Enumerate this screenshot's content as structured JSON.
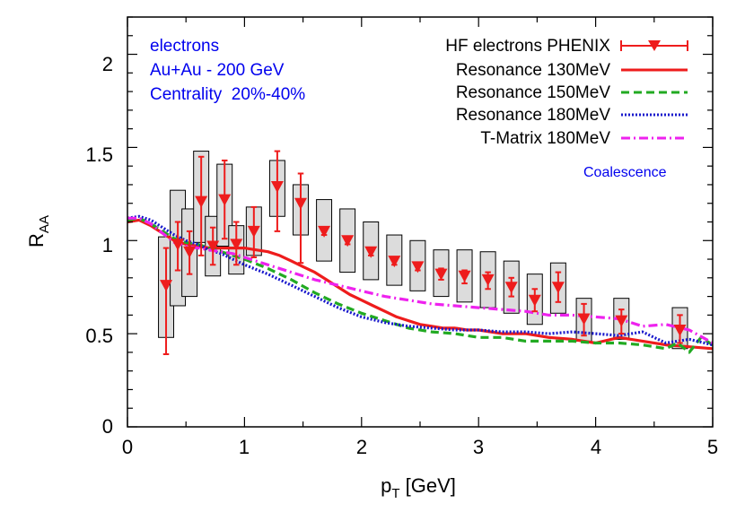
{
  "chart_data": {
    "type": "line",
    "xlabel": "p_T [GeV]",
    "xlabel_main": "p",
    "xlabel_sub": "T",
    "xlabel_rest": " [GeV]",
    "ylabel": "R_AA",
    "ylabel_main": "R",
    "ylabel_sub": "AA",
    "xlim": [
      0,
      5
    ],
    "ylim": [
      0,
      2.2
    ],
    "xticks": [
      0,
      1,
      2,
      3,
      4,
      5
    ],
    "xtick_labels": [
      "0",
      "1",
      "2",
      "3",
      "4",
      "5"
    ],
    "yticks": [
      0,
      0.5,
      1,
      1.5,
      2
    ],
    "ytick_labels": [
      "0",
      "0.5",
      "1",
      "1.5",
      "2"
    ],
    "grid": false,
    "legend_position": "top-right",
    "annotations": [
      "electrons",
      "Au+Au - 200 GeV",
      "Centrality  20%-40%"
    ],
    "extra_label": "Coalescence",
    "colors": {
      "data": "#ee1c1c",
      "res130": "#ee1c1c",
      "res150": "#22aa22",
      "res180": "#1818cc",
      "tmatrix": "#ee22ee",
      "syst_box_fill": "#dcdcdc"
    },
    "series": [
      {
        "name": "HF electrons PHENIX",
        "kind": "points",
        "points": [
          {
            "x": 0.33,
            "y": 0.76,
            "ylo": 0.39,
            "yhi": 0.96,
            "slo": 0.48,
            "shi": 1.02
          },
          {
            "x": 0.43,
            "y": 0.98,
            "ylo": 0.84,
            "yhi": 1.1,
            "slo": 0.65,
            "shi": 1.27
          },
          {
            "x": 0.53,
            "y": 0.94,
            "ylo": 0.82,
            "yhi": 1.05,
            "slo": 0.7,
            "shi": 1.17
          },
          {
            "x": 0.63,
            "y": 1.21,
            "ylo": 0.92,
            "yhi": 1.45,
            "slo": 0.99,
            "shi": 1.48
          },
          {
            "x": 0.73,
            "y": 0.97,
            "ylo": 0.87,
            "yhi": 1.07,
            "slo": 0.81,
            "shi": 1.13
          },
          {
            "x": 0.83,
            "y": 1.22,
            "ylo": 1.01,
            "yhi": 1.43,
            "slo": 0.97,
            "shi": 1.41
          },
          {
            "x": 0.93,
            "y": 0.98,
            "ylo": 0.87,
            "yhi": 1.1,
            "slo": 0.82,
            "shi": 1.08
          },
          {
            "x": 1.08,
            "y": 1.05,
            "ylo": 0.91,
            "yhi": 1.18,
            "slo": 0.92,
            "shi": 1.18
          },
          {
            "x": 1.28,
            "y": 1.29,
            "ylo": 1.05,
            "yhi": 1.48,
            "slo": 1.13,
            "shi": 1.43
          },
          {
            "x": 1.48,
            "y": 1.2,
            "ylo": 0.88,
            "yhi": 1.36,
            "slo": 1.03,
            "shi": 1.3
          },
          {
            "x": 1.68,
            "y": 1.05,
            "ylo": 1.03,
            "yhi": 1.07,
            "slo": 0.89,
            "shi": 1.22
          },
          {
            "x": 1.88,
            "y": 1.0,
            "ylo": 0.98,
            "yhi": 1.02,
            "slo": 0.83,
            "shi": 1.17
          },
          {
            "x": 2.08,
            "y": 0.94,
            "ylo": 0.92,
            "yhi": 0.96,
            "slo": 0.79,
            "shi": 1.1
          },
          {
            "x": 2.28,
            "y": 0.89,
            "ylo": 0.87,
            "yhi": 0.91,
            "slo": 0.76,
            "shi": 1.03
          },
          {
            "x": 2.48,
            "y": 0.86,
            "ylo": 0.84,
            "yhi": 0.88,
            "slo": 0.73,
            "shi": 1.0
          },
          {
            "x": 2.68,
            "y": 0.82,
            "ylo": 0.79,
            "yhi": 0.85,
            "slo": 0.7,
            "shi": 0.95
          },
          {
            "x": 2.88,
            "y": 0.81,
            "ylo": 0.77,
            "yhi": 0.84,
            "slo": 0.67,
            "shi": 0.95
          },
          {
            "x": 3.08,
            "y": 0.79,
            "ylo": 0.74,
            "yhi": 0.83,
            "slo": 0.64,
            "shi": 0.94
          },
          {
            "x": 3.28,
            "y": 0.75,
            "ylo": 0.7,
            "yhi": 0.8,
            "slo": 0.61,
            "shi": 0.89
          },
          {
            "x": 3.48,
            "y": 0.68,
            "ylo": 0.62,
            "yhi": 0.74,
            "slo": 0.55,
            "shi": 0.82
          },
          {
            "x": 3.68,
            "y": 0.75,
            "ylo": 0.67,
            "yhi": 0.83,
            "slo": 0.61,
            "shi": 0.88
          },
          {
            "x": 3.9,
            "y": 0.58,
            "ylo": 0.49,
            "yhi": 0.66,
            "slo": 0.46,
            "shi": 0.69
          },
          {
            "x": 4.22,
            "y": 0.57,
            "ylo": 0.5,
            "yhi": 0.63,
            "slo": 0.47,
            "shi": 0.69
          },
          {
            "x": 4.72,
            "y": 0.52,
            "ylo": 0.45,
            "yhi": 0.6,
            "slo": 0.42,
            "shi": 0.64
          }
        ]
      },
      {
        "name": "Resonance 130MeV",
        "kind": "line",
        "x": [
          0.0,
          0.1,
          0.2,
          0.3,
          0.4,
          0.5,
          0.6,
          0.7,
          0.8,
          0.9,
          1.0,
          1.1,
          1.2,
          1.3,
          1.4,
          1.5,
          1.6,
          1.7,
          1.8,
          1.9,
          2.0,
          2.1,
          2.2,
          2.3,
          2.4,
          2.5,
          2.6,
          2.7,
          2.8,
          2.9,
          3.0,
          3.2,
          3.4,
          3.6,
          3.8,
          4.0,
          4.2,
          4.4,
          4.6,
          4.8,
          5.0
        ],
        "y": [
          1.1,
          1.11,
          1.08,
          1.04,
          1.0,
          0.98,
          0.97,
          0.96,
          0.96,
          0.96,
          0.96,
          0.95,
          0.94,
          0.92,
          0.89,
          0.86,
          0.83,
          0.79,
          0.75,
          0.71,
          0.68,
          0.65,
          0.62,
          0.59,
          0.57,
          0.55,
          0.54,
          0.53,
          0.53,
          0.52,
          0.52,
          0.5,
          0.5,
          0.48,
          0.47,
          0.45,
          0.48,
          0.46,
          0.44,
          0.43,
          0.42
        ]
      },
      {
        "name": "Resonance 150MeV",
        "kind": "line",
        "x": [
          0.0,
          0.1,
          0.2,
          0.3,
          0.4,
          0.5,
          0.6,
          0.7,
          0.8,
          0.9,
          1.0,
          1.2,
          1.4,
          1.6,
          1.8,
          2.0,
          2.2,
          2.4,
          2.6,
          2.8,
          3.0,
          3.2,
          3.4,
          3.6,
          3.8,
          4.0,
          4.2,
          4.4,
          4.6,
          4.7,
          4.8,
          4.9,
          5.0
        ],
        "y": [
          1.11,
          1.12,
          1.09,
          1.05,
          1.01,
          0.99,
          0.98,
          0.96,
          0.94,
          0.92,
          0.9,
          0.85,
          0.79,
          0.72,
          0.66,
          0.61,
          0.57,
          0.53,
          0.51,
          0.5,
          0.48,
          0.48,
          0.46,
          0.46,
          0.46,
          0.45,
          0.45,
          0.44,
          0.42,
          0.45,
          0.4,
          0.48,
          0.44
        ]
      },
      {
        "name": "Resonance 180MeV",
        "kind": "line",
        "x": [
          0.0,
          0.1,
          0.2,
          0.3,
          0.4,
          0.5,
          0.6,
          0.7,
          0.8,
          0.9,
          1.0,
          1.2,
          1.4,
          1.6,
          1.8,
          2.0,
          2.2,
          2.4,
          2.6,
          2.8,
          3.0,
          3.2,
          3.4,
          3.6,
          3.8,
          4.0,
          4.2,
          4.4,
          4.6,
          4.8,
          5.0
        ],
        "y": [
          1.12,
          1.13,
          1.11,
          1.07,
          1.03,
          1.0,
          0.98,
          0.95,
          0.93,
          0.9,
          0.87,
          0.82,
          0.76,
          0.7,
          0.64,
          0.59,
          0.56,
          0.54,
          0.53,
          0.52,
          0.52,
          0.51,
          0.51,
          0.5,
          0.51,
          0.5,
          0.49,
          0.51,
          0.45,
          0.47,
          0.44
        ]
      },
      {
        "name": "T-Matrix 180MeV",
        "kind": "line",
        "x": [
          0.0,
          0.1,
          0.2,
          0.3,
          0.4,
          0.5,
          0.6,
          0.7,
          0.8,
          0.9,
          1.0,
          1.2,
          1.4,
          1.6,
          1.8,
          2.0,
          2.2,
          2.4,
          2.6,
          2.8,
          3.0,
          3.2,
          3.4,
          3.6,
          3.8,
          4.0,
          4.2,
          4.4,
          4.6,
          4.8,
          5.0
        ],
        "y": [
          1.12,
          1.12,
          1.09,
          1.04,
          0.99,
          0.97,
          0.96,
          0.95,
          0.94,
          0.93,
          0.91,
          0.87,
          0.83,
          0.79,
          0.76,
          0.73,
          0.7,
          0.68,
          0.66,
          0.65,
          0.64,
          0.63,
          0.62,
          0.6,
          0.6,
          0.59,
          0.58,
          0.54,
          0.55,
          0.52,
          0.45
        ]
      }
    ]
  }
}
